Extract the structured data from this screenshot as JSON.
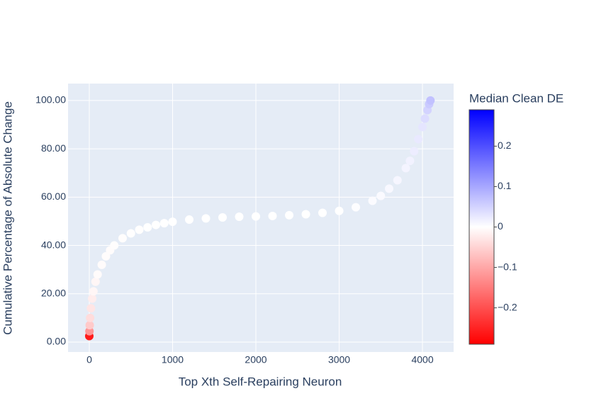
{
  "chart_data": {
    "type": "scatter",
    "x_label": "Top Xth Self-Repairing Neuron",
    "y_label": "Cumulative Percentage of Absolute Change",
    "colorbar_title": "Median Clean DE",
    "x": [
      0,
      2,
      5,
      10,
      20,
      35,
      50,
      75,
      100,
      150,
      200,
      250,
      300,
      400,
      500,
      600,
      700,
      800,
      900,
      1000,
      1200,
      1400,
      1600,
      1800,
      2000,
      2200,
      2400,
      2600,
      2800,
      3000,
      3200,
      3400,
      3500,
      3600,
      3700,
      3800,
      3850,
      3900,
      3950,
      4000,
      4030,
      4060,
      4080,
      4096
    ],
    "values": [
      2.5,
      4.5,
      7,
      10,
      14,
      18,
      21,
      25,
      28,
      32,
      35.5,
      38,
      40,
      43,
      45,
      46.5,
      47.5,
      48.5,
      49.2,
      49.8,
      50.7,
      51.2,
      51.6,
      51.9,
      52,
      52.2,
      52.5,
      52.9,
      53.5,
      54.3,
      55.8,
      58.5,
      60.5,
      63.5,
      67,
      72,
      75,
      79,
      84,
      89,
      92.5,
      96,
      98.5,
      100
    ],
    "color_values": [
      -0.26,
      -0.12,
      -0.06,
      -0.04,
      -0.03,
      -0.02,
      -0.01,
      -0.01,
      -0.005,
      -0.005,
      -0.003,
      -0.003,
      -0.002,
      -0.002,
      -0.001,
      -0.001,
      0,
      0,
      0,
      0,
      0,
      0,
      0,
      0,
      0,
      0,
      0,
      0,
      0,
      0,
      0.002,
      0.005,
      0.006,
      0.008,
      0.01,
      0.012,
      0.015,
      0.02,
      0.025,
      0.03,
      0.04,
      0.05,
      0.06,
      0.07
    ],
    "colorscale": [
      [
        0,
        "#ff0000"
      ],
      [
        0.5,
        "#ffffff"
      ],
      [
        1,
        "#0000ff"
      ]
    ],
    "cmin": -0.29,
    "cmax": 0.29,
    "colorbar_ticks": [
      0.2,
      0.1,
      0,
      {
        "value": -0.1,
        "label": "−0.1"
      },
      {
        "value": -0.2,
        "label": "−0.2"
      }
    ],
    "xlim": [
      -255,
      4374
    ],
    "ylim": [
      -4.1,
      107
    ],
    "xticks": [
      0,
      1000,
      2000,
      3000,
      4000
    ],
    "yticks": [
      {
        "value": 0,
        "label": "0.00"
      },
      {
        "value": 20,
        "label": "20.00"
      },
      {
        "value": 40,
        "label": "40.00"
      },
      {
        "value": 60,
        "label": "60.00"
      },
      {
        "value": 80,
        "label": "80.00"
      },
      {
        "value": 100,
        "label": "100.00"
      }
    ],
    "grid": true
  }
}
